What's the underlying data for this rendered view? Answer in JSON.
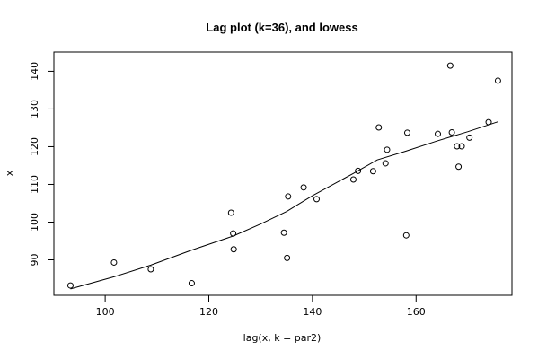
{
  "chart_data": {
    "type": "scatter",
    "title": "Lag plot (k=36), and lowess",
    "xlabel": "lag(x, k = par2)",
    "ylabel": "x",
    "xlim": [
      90.1,
      178.5
    ],
    "ylim": [
      80.6,
      145.1
    ],
    "x_ticks": [
      100,
      120,
      140,
      160
    ],
    "y_ticks": [
      90,
      100,
      110,
      120,
      130,
      140
    ],
    "grid": false,
    "legend": "none",
    "points": [
      {
        "x": 93.3,
        "y": 83.2
      },
      {
        "x": 101.7,
        "y": 89.3
      },
      {
        "x": 108.8,
        "y": 87.5
      },
      {
        "x": 116.7,
        "y": 83.8
      },
      {
        "x": 124.3,
        "y": 102.5
      },
      {
        "x": 124.7,
        "y": 97.0
      },
      {
        "x": 124.8,
        "y": 92.8
      },
      {
        "x": 134.5,
        "y": 97.2
      },
      {
        "x": 135.1,
        "y": 90.5
      },
      {
        "x": 135.3,
        "y": 106.8
      },
      {
        "x": 138.3,
        "y": 109.2
      },
      {
        "x": 140.8,
        "y": 106.1
      },
      {
        "x": 147.9,
        "y": 111.3
      },
      {
        "x": 148.8,
        "y": 113.6
      },
      {
        "x": 151.7,
        "y": 113.5
      },
      {
        "x": 152.8,
        "y": 125.1
      },
      {
        "x": 154.1,
        "y": 115.6
      },
      {
        "x": 154.4,
        "y": 119.2
      },
      {
        "x": 158.1,
        "y": 96.5
      },
      {
        "x": 158.3,
        "y": 123.7
      },
      {
        "x": 164.2,
        "y": 123.4
      },
      {
        "x": 166.6,
        "y": 141.5
      },
      {
        "x": 166.9,
        "y": 123.8
      },
      {
        "x": 167.9,
        "y": 120.1
      },
      {
        "x": 168.2,
        "y": 114.7
      },
      {
        "x": 168.8,
        "y": 120.1
      },
      {
        "x": 170.3,
        "y": 122.4
      },
      {
        "x": 174.0,
        "y": 126.5
      },
      {
        "x": 175.8,
        "y": 137.5
      }
    ],
    "lowess": [
      {
        "x": 93.3,
        "y": 82.3
      },
      {
        "x": 101.7,
        "y": 85.5
      },
      {
        "x": 108.8,
        "y": 88.6
      },
      {
        "x": 116.7,
        "y": 92.6
      },
      {
        "x": 124.7,
        "y": 96.3
      },
      {
        "x": 130.0,
        "y": 99.5
      },
      {
        "x": 135.0,
        "y": 102.8
      },
      {
        "x": 140.0,
        "y": 107.0
      },
      {
        "x": 148.0,
        "y": 113.0
      },
      {
        "x": 152.5,
        "y": 116.5
      },
      {
        "x": 158.0,
        "y": 118.8
      },
      {
        "x": 164.0,
        "y": 121.5
      },
      {
        "x": 170.0,
        "y": 124.0
      },
      {
        "x": 175.8,
        "y": 126.6
      }
    ]
  }
}
